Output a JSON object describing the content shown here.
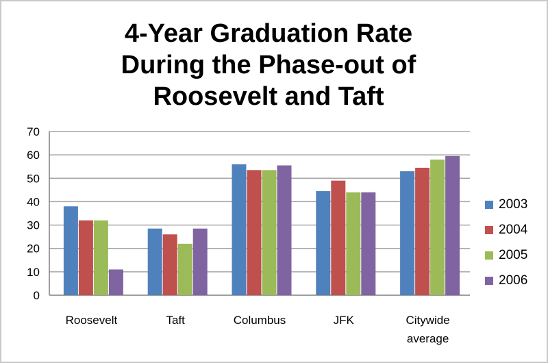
{
  "chart_data": {
    "type": "bar",
    "title_lines": [
      "4-Year Graduation Rate",
      "During the Phase-out of",
      "Roosevelt and Taft"
    ],
    "categories": [
      [
        "Roosevelt"
      ],
      [
        "Taft"
      ],
      [
        "Columbus"
      ],
      [
        "JFK"
      ],
      [
        "Citywide",
        "average"
      ]
    ],
    "series": [
      {
        "name": "2003",
        "color": "#4f81bd",
        "values": [
          38,
          28.5,
          56,
          44.5,
          53
        ]
      },
      {
        "name": "2004",
        "color": "#c0504d",
        "values": [
          32,
          26,
          53.5,
          49,
          54.5
        ]
      },
      {
        "name": "2005",
        "color": "#9bbb59",
        "values": [
          32,
          22,
          53.5,
          44,
          58
        ]
      },
      {
        "name": "2006",
        "color": "#8064a2",
        "values": [
          11,
          28.5,
          55.5,
          44,
          59.5
        ]
      }
    ],
    "ylim": [
      0,
      70
    ],
    "yticks": [
      0,
      10,
      20,
      30,
      40,
      50,
      60,
      70
    ],
    "grid": true,
    "legend_position": "right"
  }
}
